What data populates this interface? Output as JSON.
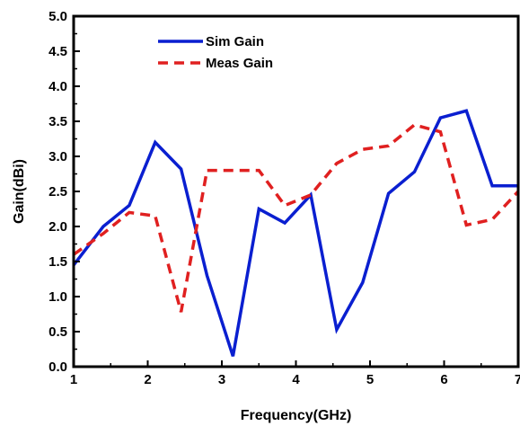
{
  "chart_data": {
    "type": "line",
    "title": "",
    "xlabel": "Frequency(GHz)",
    "ylabel": "Gain(dBi)",
    "xlim": [
      1,
      7
    ],
    "ylim": [
      0.0,
      5.0
    ],
    "xticks": [
      "1",
      "2",
      "3",
      "4",
      "5",
      "6",
      "7"
    ],
    "yticks": [
      "0.0",
      "0.5",
      "1.0",
      "1.5",
      "2.0",
      "2.5",
      "3.0",
      "3.5",
      "4.0",
      "4.5",
      "5.0"
    ],
    "grid": false,
    "legend_position": "top-left",
    "series": [
      {
        "name": "Sim Gain",
        "color": "#0a1fd0",
        "style": "solid",
        "x": [
          1.0,
          1.4,
          1.75,
          2.1,
          2.45,
          2.8,
          3.15,
          3.5,
          3.85,
          4.2,
          4.55,
          4.9,
          5.25,
          5.6,
          5.95,
          6.3,
          6.65,
          7.0
        ],
        "y": [
          1.45,
          2.0,
          2.3,
          3.2,
          2.82,
          1.3,
          0.15,
          2.25,
          2.05,
          2.45,
          0.53,
          1.2,
          2.47,
          2.78,
          3.55,
          3.65,
          2.58,
          2.58
        ]
      },
      {
        "name": "Meas Gain",
        "color": "#e02020",
        "style": "dashed",
        "x": [
          1.0,
          1.4,
          1.75,
          2.1,
          2.45,
          2.8,
          3.15,
          3.5,
          3.85,
          4.2,
          4.55,
          4.9,
          5.25,
          5.6,
          5.95,
          6.3,
          6.65,
          7.0
        ],
        "y": [
          1.6,
          1.9,
          2.2,
          2.15,
          0.78,
          2.8,
          2.8,
          2.8,
          2.3,
          2.45,
          2.9,
          3.1,
          3.15,
          3.45,
          3.35,
          2.02,
          2.1,
          2.5
        ]
      }
    ]
  }
}
